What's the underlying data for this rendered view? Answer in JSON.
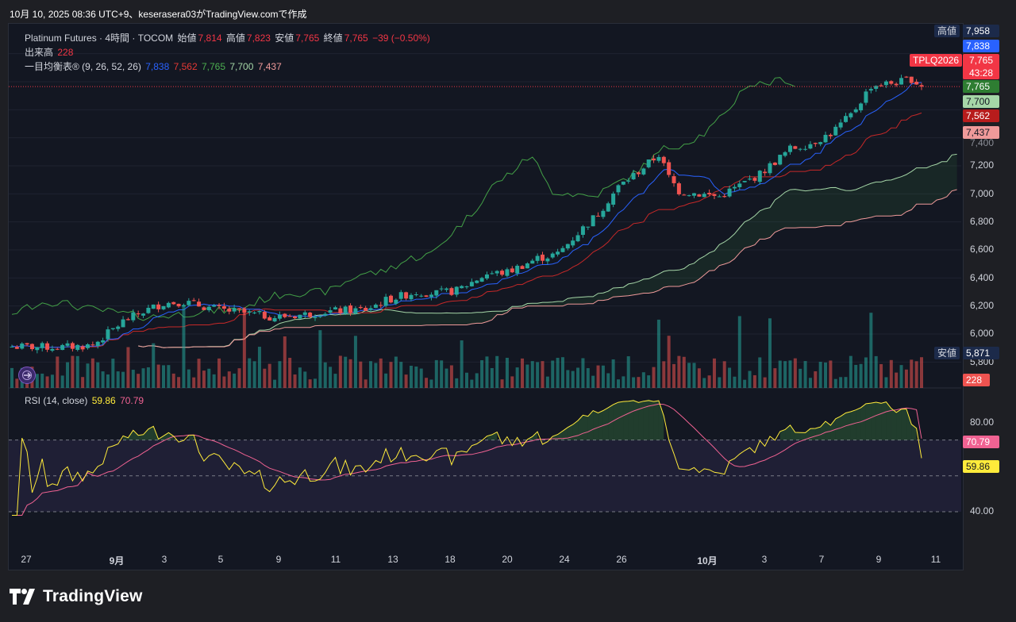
{
  "header": {
    "snapshot_text": "10月 10, 2025 08:36 UTC+9、keserasera03がTradingView.comで作成"
  },
  "legend": {
    "symbol": "Platinum Futures · 4時間 · TOCOM",
    "open_label": "始値",
    "open": "7,814",
    "high_label": "高値",
    "high": "7,823",
    "low_label": "安値",
    "low": "7,765",
    "close_label": "終値",
    "close": "7,765",
    "change": "−39 (−0.50%)",
    "volume_label": "出来高",
    "volume": "228",
    "ichimoku_label": "一目均衡表® (9, 26, 52, 26)",
    "ichimoku_values": [
      "7,838",
      "7,562",
      "7,765",
      "7,700",
      "7,437"
    ],
    "rsi_label": "RSI (14, close)",
    "rsi_value": "59.86",
    "rsi_ma_value": "70.79"
  },
  "price_axis": {
    "ticks": [
      "7,200",
      "7,000",
      "6,800",
      "6,600",
      "6,400",
      "6,200",
      "6,000",
      "5,800"
    ],
    "high_tag_label": "高値",
    "high_tag_value": "7,958",
    "low_tag_label": "安値",
    "low_tag_value": "5,871",
    "symbol_tag": "TPLQ2026",
    "last_price": "7,765",
    "countdown": "43:28",
    "tenkan_tag": "7,838",
    "chikou_tag": "7,765",
    "spanA_tag": "7,700",
    "kijun_tag": "7,562",
    "spanB_tag": "7,437",
    "volume_tag": "228",
    "partial_tick": "7,400"
  },
  "rsi_axis": {
    "ticks": [
      "80.00",
      "40.00"
    ],
    "rsi_tag": "59.86",
    "ma_tag": "70.79"
  },
  "time_axis": {
    "labels": [
      "27",
      "9月",
      "3",
      "5",
      "9",
      "11",
      "13",
      "18",
      "20",
      "24",
      "26",
      "10月",
      "3",
      "7",
      "9",
      "11"
    ]
  },
  "footer": {
    "brand": "TradingView"
  },
  "colors": {
    "background": "#131722",
    "up": "#26a69a",
    "down": "#ef5350",
    "tenkan": "#2962ff",
    "kijun": "#b71c1c",
    "chikou": "#43a047",
    "spanA": "#a5d6a7",
    "spanB": "#ef9a9a",
    "rsi": "#ffeb3b",
    "rsi_ma": "#f06292"
  },
  "chart_data": [
    {
      "type": "candlestick",
      "title": "Platinum Futures · 4時間 · TOCOM",
      "ylim": [
        5700,
        8050
      ],
      "x_labels": [
        "27",
        "9月",
        "3",
        "5",
        "9",
        "11",
        "13",
        "18",
        "20",
        "24",
        "26",
        "10月",
        "3",
        "7",
        "9",
        "11"
      ],
      "close_path": [
        [
          0,
          5910
        ],
        [
          10,
          5905
        ],
        [
          16,
          5920
        ],
        [
          22,
          6090
        ],
        [
          26,
          6160
        ],
        [
          30,
          6220
        ],
        [
          34,
          6230
        ],
        [
          40,
          6180
        ],
        [
          46,
          6150
        ],
        [
          52,
          6120
        ],
        [
          58,
          6140
        ],
        [
          62,
          6160
        ],
        [
          70,
          6175
        ],
        [
          74,
          6240
        ],
        [
          80,
          6300
        ],
        [
          84,
          6290
        ],
        [
          88,
          6310
        ],
        [
          94,
          6430
        ],
        [
          98,
          6440
        ],
        [
          104,
          6540
        ],
        [
          108,
          6570
        ],
        [
          112,
          6720
        ],
        [
          116,
          6860
        ],
        [
          120,
          7050
        ],
        [
          124,
          7160
        ],
        [
          126,
          7220
        ],
        [
          128,
          7280
        ],
        [
          130,
          7120
        ],
        [
          132,
          7020
        ],
        [
          136,
          7000
        ],
        [
          140,
          6980
        ],
        [
          144,
          7060
        ],
        [
          148,
          7140
        ],
        [
          154,
          7320
        ],
        [
          158,
          7360
        ],
        [
          162,
          7430
        ],
        [
          166,
          7560
        ],
        [
          170,
          7770
        ],
        [
          176,
          7800
        ],
        [
          178,
          7820
        ],
        [
          180,
          7765
        ]
      ],
      "volume_max": 700,
      "last_volume": 228
    },
    {
      "type": "line",
      "title": "RSI (14, close)",
      "ylim": [
        30,
        90
      ],
      "levels": [
        70,
        50,
        30
      ],
      "rsi_last": 59.86,
      "rsi_ma_last": 70.79
    }
  ]
}
